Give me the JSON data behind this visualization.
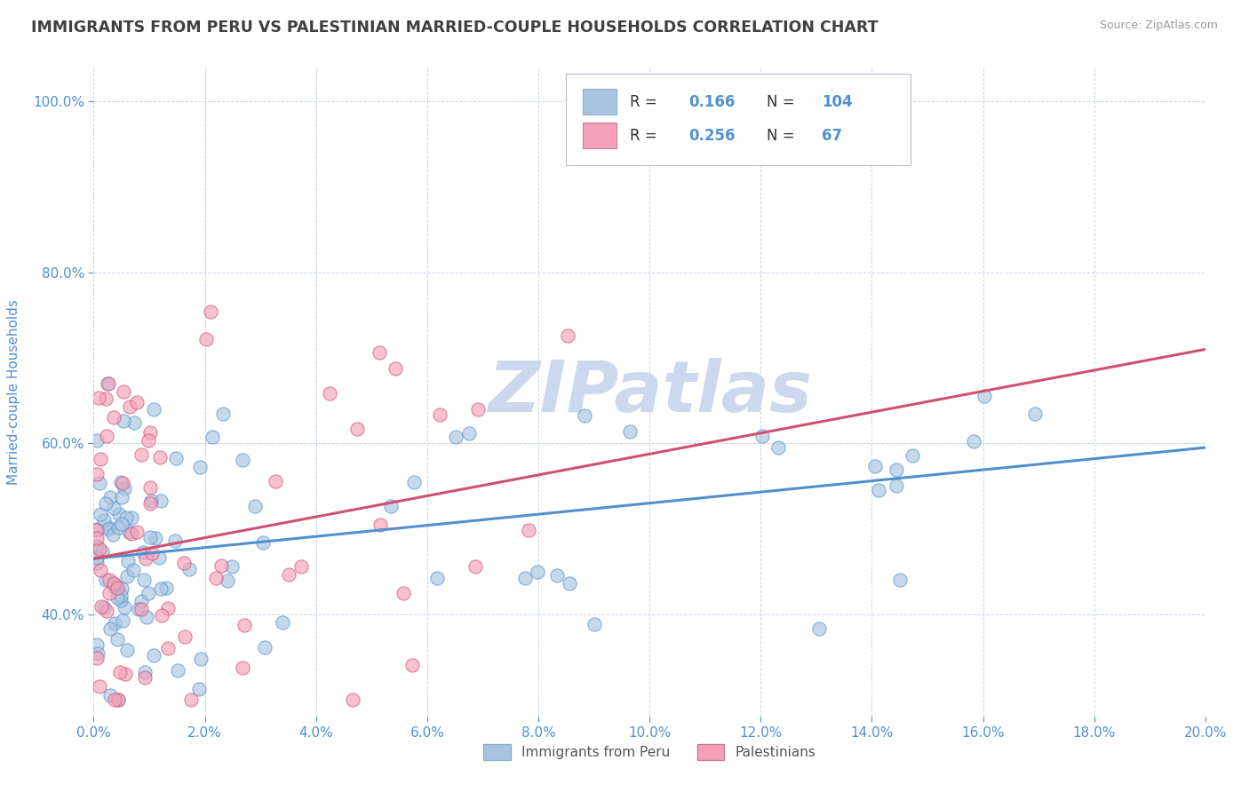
{
  "title": "IMMIGRANTS FROM PERU VS PALESTINIAN MARRIED-COUPLE HOUSEHOLDS CORRELATION CHART",
  "source": "Source: ZipAtlas.com",
  "ylabel": "Married-couple Households",
  "xmin": 0.0,
  "xmax": 0.2,
  "ymin": 0.28,
  "ymax": 1.04,
  "legend1_label": "Immigrants from Peru",
  "legend2_label": "Palestinians",
  "r1": 0.166,
  "n1": 104,
  "r2": 0.256,
  "n2": 67,
  "color1": "#a8c4e0",
  "color2": "#f4a0b8",
  "line1_color": "#5090d0",
  "line2_color": "#d05070",
  "background_color": "#ffffff",
  "grid_color": "#c8d4e8",
  "title_color": "#404040",
  "axis_tick_color": "#5090d0",
  "watermark": "ZIPatlas",
  "watermark_color": "#ccd8ee",
  "line1_x0": 0.0,
  "line1_y0": 0.465,
  "line1_x1": 0.2,
  "line1_y1": 0.595,
  "line2_x0": 0.0,
  "line2_y0": 0.465,
  "line2_x1": 0.2,
  "line2_y1": 0.71
}
